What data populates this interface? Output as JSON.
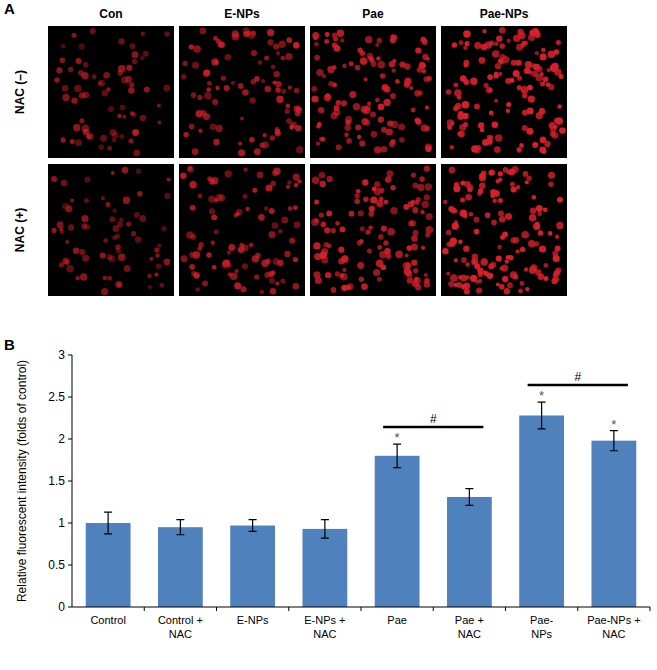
{
  "panel_a": {
    "label": "A",
    "columns": [
      "Con",
      "E-NPs",
      "Pae",
      "Pae-NPs"
    ],
    "rows": [
      "NAC (–)",
      "NAC (+)"
    ]
  },
  "chart_data": {
    "type": "bar",
    "panel_label": "B",
    "y_label": "Relative fluorescent intensity (folds of control)",
    "categories": [
      "Control",
      "Control + NAC",
      "E-NPs",
      "E-NPs + NAC",
      "Pae",
      "Pae + NAC",
      "Pae-NPs",
      "Pae-NPs + NAC"
    ],
    "values": [
      1.0,
      0.95,
      0.97,
      0.93,
      1.8,
      1.31,
      2.28,
      1.98
    ],
    "errors": [
      0.13,
      0.09,
      0.07,
      0.11,
      0.14,
      0.1,
      0.16,
      0.12
    ],
    "color": "#4f81bd",
    "ylim": [
      0,
      3
    ],
    "yticks": [
      0,
      0.5,
      1,
      1.5,
      2,
      2.5,
      3
    ],
    "grid": false,
    "significance_stars": [
      {
        "index": 4,
        "label": "*"
      },
      {
        "index": 6,
        "label": "*"
      },
      {
        "index": 7,
        "label": "*"
      }
    ],
    "brackets": [
      {
        "from": 4,
        "to": 5,
        "label": "#"
      },
      {
        "from": 6,
        "to": 7,
        "label": "#"
      }
    ]
  }
}
